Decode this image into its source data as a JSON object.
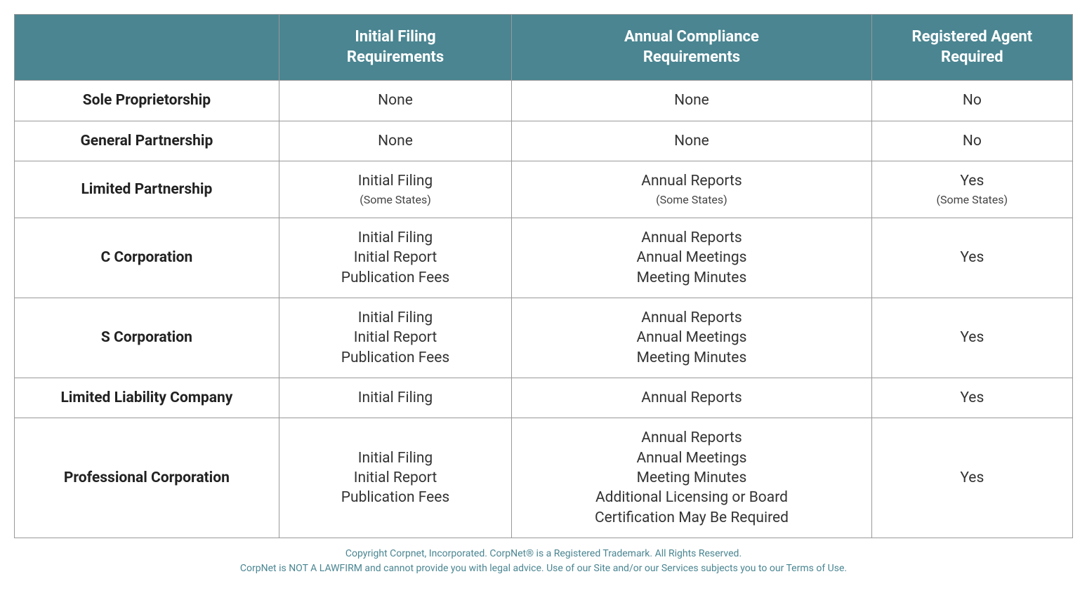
{
  "table": {
    "header_bg": "#4a8591",
    "header_color": "#ffffff",
    "border_color": "#999999",
    "columns": [
      "",
      "Initial Filing\nRequirements",
      "Annual Compliance\nRequirements",
      "Registered Agent\nRequired"
    ],
    "rows": [
      {
        "label": "Sole Proprietorship",
        "filing": [
          {
            "text": "None"
          }
        ],
        "annual": [
          {
            "text": "None"
          }
        ],
        "agent": [
          {
            "text": "No"
          }
        ]
      },
      {
        "label": "General Partnership",
        "filing": [
          {
            "text": "None"
          }
        ],
        "annual": [
          {
            "text": "None"
          }
        ],
        "agent": [
          {
            "text": "No"
          }
        ]
      },
      {
        "label": "Limited Partnership",
        "filing": [
          {
            "text": "Initial Filing"
          },
          {
            "text": "(Some States)",
            "small": true
          }
        ],
        "annual": [
          {
            "text": "Annual Reports"
          },
          {
            "text": "(Some States)",
            "small": true
          }
        ],
        "agent": [
          {
            "text": "Yes"
          },
          {
            "text": "(Some States)",
            "small": true
          }
        ]
      },
      {
        "label": "C Corporation",
        "filing": [
          {
            "text": "Initial Filing"
          },
          {
            "text": "Initial Report"
          },
          {
            "text": "Publication Fees"
          }
        ],
        "annual": [
          {
            "text": "Annual Reports"
          },
          {
            "text": "Annual Meetings"
          },
          {
            "text": "Meeting Minutes"
          }
        ],
        "agent": [
          {
            "text": "Yes"
          }
        ]
      },
      {
        "label": "S Corporation",
        "filing": [
          {
            "text": "Initial Filing"
          },
          {
            "text": "Initial Report"
          },
          {
            "text": "Publication Fees"
          }
        ],
        "annual": [
          {
            "text": "Annual Reports"
          },
          {
            "text": "Annual Meetings"
          },
          {
            "text": "Meeting Minutes"
          }
        ],
        "agent": [
          {
            "text": "Yes"
          }
        ]
      },
      {
        "label": "Limited Liability Company",
        "filing": [
          {
            "text": "Initial Filing"
          }
        ],
        "annual": [
          {
            "text": "Annual Reports"
          }
        ],
        "agent": [
          {
            "text": "Yes"
          }
        ]
      },
      {
        "label": "Professional Corporation",
        "filing": [
          {
            "text": "Initial Filing"
          },
          {
            "text": "Initial Report"
          },
          {
            "text": "Publication Fees"
          }
        ],
        "annual": [
          {
            "text": "Annual Reports"
          },
          {
            "text": "Annual Meetings"
          },
          {
            "text": "Meeting Minutes"
          },
          {
            "text": "Additional Licensing or Board"
          },
          {
            "text": "Certification May Be Required"
          }
        ],
        "agent": [
          {
            "text": "Yes"
          }
        ]
      }
    ]
  },
  "footer": {
    "line1": "Copyright Corpnet, Incorporated.  CorpNet® is a Registered Trademark.  All Rights Reserved.",
    "line2": "CorpNet is NOT A LAWFIRM and cannot provide you with legal advice.  Use of our Site and/or our Services subjects you to our Terms of Use."
  }
}
